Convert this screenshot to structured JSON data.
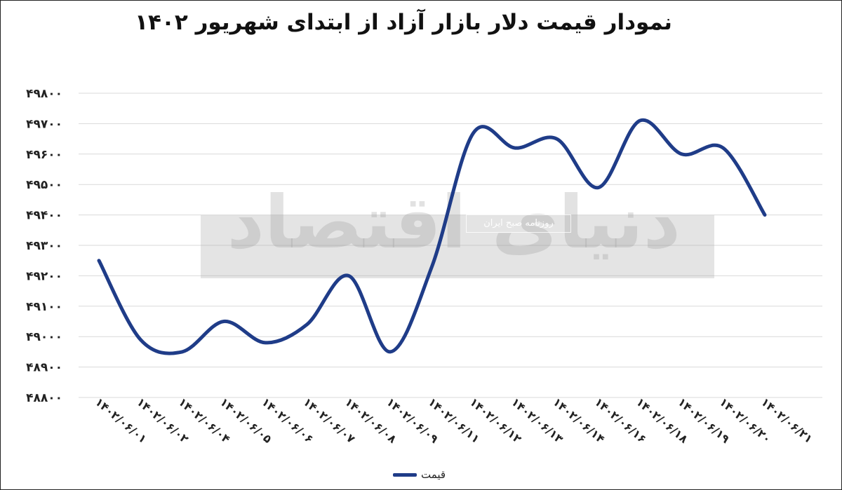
{
  "colors": {
    "series": "#1f3c88",
    "grid": "#d9d9d9",
    "text": "#222222"
  },
  "chart_data": {
    "type": "line",
    "title": "نمودار قیمت دلار بازار آزاد از ابتدای شهریور ۱۴۰۲",
    "xlabel": "",
    "ylabel": "",
    "ylim": [
      48800,
      49800
    ],
    "yticks": [
      48800,
      48900,
      49000,
      49100,
      49200,
      49300,
      49400,
      49500,
      49600,
      49700,
      49800
    ],
    "ytick_labels": [
      "۴۸۸۰۰",
      "۴۸۹۰۰",
      "۴۹۰۰۰",
      "۴۹۱۰۰",
      "۴۹۲۰۰",
      "۴۹۳۰۰",
      "۴۹۴۰۰",
      "۴۹۵۰۰",
      "۴۹۶۰۰",
      "۴۹۷۰۰",
      "۴۹۸۰۰"
    ],
    "categories": [
      "۱۴۰۲/۰۶/۰۱",
      "۱۴۰۲/۰۶/۰۲",
      "۱۴۰۲/۰۶/۰۴",
      "۱۴۰۲/۰۶/۰۵",
      "۱۴۰۲/۰۶/۰۶",
      "۱۴۰۲/۰۶/۰۷",
      "۱۴۰۲/۰۶/۰۸",
      "۱۴۰۲/۰۶/۰۹",
      "۱۴۰۲/۰۶/۱۱",
      "۱۴۰۲/۰۶/۱۲",
      "۱۴۰۲/۰۶/۱۳",
      "۱۴۰۲/۰۶/۱۴",
      "۱۴۰۲/۰۶/۱۶",
      "۱۴۰۲/۰۶/۱۸",
      "۱۴۰۲/۰۶/۱۹",
      "۱۴۰۲/۰۶/۲۰",
      "۱۴۰۲/۰۶/۲۱"
    ],
    "series": [
      {
        "name": "قیمت",
        "values": [
          49250,
          48990,
          48950,
          49050,
          48980,
          49040,
          49200,
          48950,
          49230,
          49670,
          49620,
          49650,
          49490,
          49710,
          49600,
          49620,
          49400
        ]
      }
    ],
    "grid": true,
    "legend_position": "bottom"
  },
  "watermark": {
    "main": "دنیای اقتصاد",
    "sub": "روزنامه صبح ایران"
  }
}
